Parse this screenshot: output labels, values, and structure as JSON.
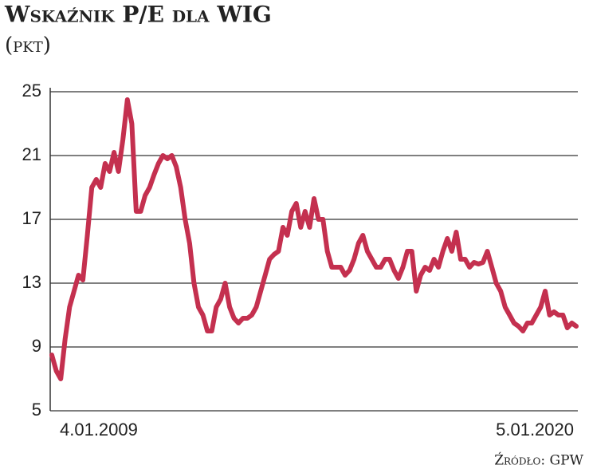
{
  "chart_data": {
    "type": "line",
    "title": "Wskaźnik P/E dla WIG",
    "subtitle": "(pkt)",
    "source": "Źródło: GPW",
    "categories": [
      "4.01.2009",
      null,
      null,
      null,
      null,
      null,
      null,
      null,
      null,
      null,
      null,
      null,
      null,
      null,
      null,
      null,
      null,
      null,
      null,
      null,
      null,
      null,
      null,
      null,
      null,
      null,
      null,
      null,
      null,
      null,
      null,
      null,
      null,
      null,
      null,
      null,
      null,
      null,
      null,
      null,
      null,
      null,
      null,
      null,
      null,
      null,
      null,
      null,
      null,
      null,
      null,
      null,
      null,
      null,
      null,
      null,
      null,
      null,
      null,
      null,
      null,
      null,
      null,
      null,
      null,
      null,
      null,
      null,
      null,
      null,
      null,
      null,
      null,
      null,
      null,
      null,
      null,
      null,
      null,
      null,
      null,
      null,
      null,
      null,
      null,
      null,
      null,
      null,
      null,
      null,
      null,
      null,
      null,
      null,
      null,
      null,
      null,
      null,
      null,
      null,
      null,
      null,
      null,
      null,
      null,
      null,
      null,
      null,
      null,
      null,
      null,
      null,
      null,
      null,
      null,
      null,
      null,
      null,
      "5.01.2020"
    ],
    "values": [
      8.5,
      7.5,
      7,
      9.5,
      11.5,
      12.5,
      13.5,
      13.2,
      16,
      19,
      19.5,
      19,
      20.5,
      20,
      21.2,
      20,
      22,
      24.5,
      23,
      17.5,
      17.5,
      18.5,
      19,
      19.8,
      20.5,
      21,
      20.8,
      21,
      20.3,
      19,
      17,
      15.5,
      13,
      11.5,
      11,
      10,
      10,
      11.5,
      12,
      13,
      11.5,
      10.8,
      10.5,
      10.8,
      10.8,
      11,
      11.5,
      12.5,
      13.5,
      14.5,
      14.8,
      15,
      16.5,
      16,
      17.5,
      18,
      16.5,
      17.5,
      16.5,
      18.3,
      17,
      17,
      15,
      14,
      14,
      14,
      13.5,
      13.8,
      14.5,
      15.5,
      16,
      15,
      14.5,
      14,
      14,
      14.5,
      14.5,
      13.8,
      13.3,
      14,
      15,
      15,
      12.5,
      13.5,
      14,
      13.8,
      14.5,
      14,
      15,
      15.8,
      15,
      16.2,
      14.5,
      14.5,
      14,
      14.3,
      14.2,
      14.3,
      15,
      14,
      13,
      12.5,
      11.5,
      11,
      10.5,
      10.3,
      10,
      10.5,
      10.5,
      11,
      11.5,
      12.5,
      11,
      11.2,
      11,
      11,
      10.2,
      10.5,
      10.3
    ],
    "color": "#c4304f",
    "ylim": [
      5,
      25
    ],
    "yticks": [
      5,
      9,
      13,
      17,
      21,
      25
    ],
    "grid": true
  }
}
